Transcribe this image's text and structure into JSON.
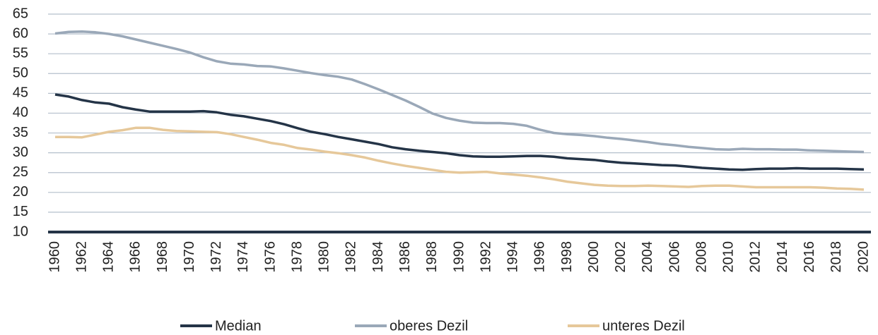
{
  "chart_data": {
    "type": "line",
    "x": [
      1960,
      1961,
      1962,
      1963,
      1964,
      1965,
      1966,
      1967,
      1968,
      1969,
      1970,
      1971,
      1972,
      1973,
      1974,
      1975,
      1976,
      1977,
      1978,
      1979,
      1980,
      1981,
      1982,
      1983,
      1984,
      1985,
      1986,
      1987,
      1988,
      1989,
      1990,
      1991,
      1992,
      1993,
      1994,
      1995,
      1996,
      1997,
      1998,
      1999,
      2000,
      2001,
      2002,
      2003,
      2004,
      2005,
      2006,
      2007,
      2008,
      2009,
      2010,
      2011,
      2012,
      2013,
      2014,
      2015,
      2016,
      2017,
      2018,
      2019,
      2020
    ],
    "series": [
      {
        "name": "Median",
        "color": "#243447",
        "values": [
          44.7,
          44.2,
          43.3,
          42.7,
          42.4,
          41.5,
          40.9,
          40.4,
          40.4,
          40.4,
          40.4,
          40.5,
          40.2,
          39.6,
          39.2,
          38.6,
          38.0,
          37.2,
          36.2,
          35.3,
          34.7,
          34.0,
          33.4,
          32.8,
          32.2,
          31.4,
          30.9,
          30.5,
          30.2,
          29.9,
          29.4,
          29.1,
          29.0,
          29.0,
          29.1,
          29.2,
          29.2,
          29.0,
          28.6,
          28.4,
          28.2,
          27.8,
          27.5,
          27.3,
          27.1,
          26.9,
          26.8,
          26.5,
          26.2,
          26.0,
          25.8,
          25.7,
          25.9,
          26.0,
          26.0,
          26.1,
          26.0,
          26.0,
          26.0,
          25.9,
          25.8
        ]
      },
      {
        "name": "oberes Dezil",
        "color": "#9aa8b8",
        "values": [
          60.1,
          60.5,
          60.6,
          60.4,
          60.0,
          59.4,
          58.6,
          57.8,
          57.0,
          56.2,
          55.3,
          54.1,
          53.1,
          52.5,
          52.3,
          51.9,
          51.8,
          51.3,
          50.7,
          50.1,
          49.6,
          49.2,
          48.5,
          47.3,
          46.0,
          44.6,
          43.2,
          41.6,
          39.9,
          38.8,
          38.1,
          37.6,
          37.5,
          37.5,
          37.3,
          36.8,
          35.8,
          35.0,
          34.7,
          34.5,
          34.2,
          33.8,
          33.5,
          33.1,
          32.7,
          32.2,
          31.9,
          31.5,
          31.2,
          30.9,
          30.8,
          31.0,
          30.9,
          30.9,
          30.8,
          30.8,
          30.6,
          30.5,
          30.4,
          30.3,
          30.2
        ]
      },
      {
        "name": "unteres Dezil",
        "color": "#e6c89a",
        "values": [
          34.0,
          34.0,
          33.9,
          34.6,
          35.3,
          35.7,
          36.3,
          36.3,
          35.8,
          35.5,
          35.4,
          35.3,
          35.2,
          34.7,
          34.0,
          33.3,
          32.5,
          32.0,
          31.2,
          30.8,
          30.3,
          29.9,
          29.4,
          28.8,
          28.0,
          27.3,
          26.7,
          26.2,
          25.7,
          25.2,
          25.0,
          25.1,
          25.2,
          24.8,
          24.5,
          24.2,
          23.8,
          23.3,
          22.7,
          22.3,
          21.9,
          21.7,
          21.6,
          21.6,
          21.7,
          21.6,
          21.5,
          21.4,
          21.6,
          21.7,
          21.7,
          21.5,
          21.3,
          21.3,
          21.3,
          21.3,
          21.3,
          21.2,
          21.0,
          20.9,
          20.7
        ]
      }
    ],
    "xlim": [
      1960,
      2020
    ],
    "xticks": [
      1960,
      1962,
      1964,
      1966,
      1968,
      1970,
      1972,
      1974,
      1976,
      1978,
      1980,
      1982,
      1984,
      1986,
      1988,
      1990,
      1992,
      1994,
      1996,
      1998,
      2000,
      2002,
      2004,
      2006,
      2008,
      2010,
      2012,
      2014,
      2016,
      2018,
      2020
    ],
    "ylim": [
      10,
      65
    ],
    "yticks": [
      10,
      15,
      20,
      25,
      30,
      35,
      40,
      45,
      50,
      55,
      60,
      65
    ],
    "grid": true,
    "legend": "bottom"
  }
}
